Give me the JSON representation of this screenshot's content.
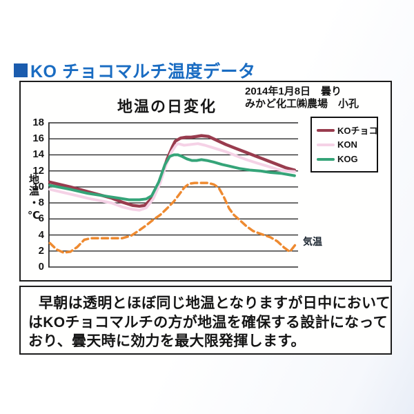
{
  "header": {
    "title": "KO チョコマルチ温度データ"
  },
  "chart": {
    "title": "地温の日変化",
    "date_line1": "2014年1月8日　曇り",
    "date_line2": "みかど化工㈱農場　小孔",
    "ylabel": "地温・℃",
    "air_temp_label": "気温",
    "legend": [
      {
        "label": "KOチョコ",
        "color": "#993c4e"
      },
      {
        "label": "KON",
        "color": "#f5d2e6"
      },
      {
        "label": "KOG",
        "color": "#35a478"
      }
    ]
  },
  "chart_data": {
    "type": "line",
    "title": "地温の日変化",
    "xlabel": "",
    "ylabel": "地温・℃",
    "ylim": [
      0,
      18
    ],
    "yticks": [
      0,
      2,
      4,
      6,
      8,
      10,
      12,
      14,
      16,
      18
    ],
    "grid": "horizontal",
    "legend_position": "outside-right",
    "x_unit": "time of day, percent of axis (no x tick labels shown)",
    "series": [
      {
        "name": "KOチョコ",
        "color": "#993c4e",
        "style": "solid",
        "width": 4.5,
        "points": [
          [
            0.6,
            10.6
          ],
          [
            8.8,
            10.0
          ],
          [
            17.1,
            9.3
          ],
          [
            25.4,
            8.6
          ],
          [
            29.6,
            8.1
          ],
          [
            33.7,
            7.7
          ],
          [
            36.5,
            7.6
          ],
          [
            38.7,
            7.7
          ],
          [
            40.6,
            8.3
          ],
          [
            43.4,
            9.8
          ],
          [
            45.6,
            11.6
          ],
          [
            47.5,
            13.4
          ],
          [
            49.7,
            15.0
          ],
          [
            50.8,
            15.7
          ],
          [
            53.0,
            16.1
          ],
          [
            55.2,
            16.2
          ],
          [
            57.2,
            16.2
          ],
          [
            59.4,
            16.3
          ],
          [
            61.3,
            16.4
          ],
          [
            64.1,
            16.3
          ],
          [
            66.9,
            15.9
          ],
          [
            71.0,
            15.3
          ],
          [
            75.1,
            14.8
          ],
          [
            79.3,
            14.3
          ],
          [
            83.4,
            13.8
          ],
          [
            87.6,
            13.3
          ],
          [
            91.7,
            12.8
          ],
          [
            95.0,
            12.4
          ],
          [
            98.6,
            12.1
          ]
        ]
      },
      {
        "name": "KON",
        "color": "#f5d2e6",
        "style": "solid",
        "width": 4,
        "points": [
          [
            0.6,
            9.7
          ],
          [
            8.8,
            9.1
          ],
          [
            17.1,
            8.5
          ],
          [
            25.4,
            8.0
          ],
          [
            29.6,
            7.5
          ],
          [
            33.7,
            7.2
          ],
          [
            36.5,
            7.1
          ],
          [
            39.2,
            7.4
          ],
          [
            42.0,
            8.5
          ],
          [
            44.8,
            10.5
          ],
          [
            47.0,
            12.6
          ],
          [
            49.2,
            14.3
          ],
          [
            51.1,
            15.2
          ],
          [
            51.9,
            15.4
          ],
          [
            54.4,
            15.2
          ],
          [
            57.2,
            15.3
          ],
          [
            59.9,
            15.4
          ],
          [
            62.7,
            15.2
          ],
          [
            66.9,
            14.8
          ],
          [
            71.0,
            14.4
          ],
          [
            75.1,
            13.9
          ],
          [
            79.3,
            13.4
          ],
          [
            83.4,
            13.0
          ],
          [
            87.6,
            12.6
          ],
          [
            91.7,
            12.2
          ],
          [
            95.0,
            12.0
          ],
          [
            98.6,
            11.9
          ]
        ]
      },
      {
        "name": "KOG",
        "color": "#35a478",
        "style": "solid",
        "width": 4,
        "points": [
          [
            0.6,
            10.2
          ],
          [
            8.8,
            9.7
          ],
          [
            15.7,
            9.2
          ],
          [
            19.9,
            9.0
          ],
          [
            24.0,
            8.8
          ],
          [
            28.2,
            8.6
          ],
          [
            32.3,
            8.4
          ],
          [
            36.5,
            8.4
          ],
          [
            39.2,
            8.5
          ],
          [
            41.4,
            8.9
          ],
          [
            44.2,
            10.6
          ],
          [
            46.7,
            12.8
          ],
          [
            48.6,
            13.8
          ],
          [
            50.3,
            14.0
          ],
          [
            51.9,
            14.0
          ],
          [
            53.6,
            13.8
          ],
          [
            55.5,
            13.5
          ],
          [
            57.5,
            13.3
          ],
          [
            59.4,
            13.3
          ],
          [
            61.3,
            13.4
          ],
          [
            63.5,
            13.3
          ],
          [
            66.3,
            13.1
          ],
          [
            69.6,
            12.8
          ],
          [
            72.4,
            12.6
          ],
          [
            76.5,
            12.3
          ],
          [
            80.7,
            12.1
          ],
          [
            84.8,
            12.0
          ],
          [
            89.0,
            11.8
          ],
          [
            93.1,
            11.7
          ],
          [
            98.6,
            11.4
          ]
        ]
      },
      {
        "name": "気温",
        "color": "#ee8a30",
        "style": "dashed",
        "width": 3.5,
        "points": [
          [
            0.6,
            3.0
          ],
          [
            3.3,
            2.2
          ],
          [
            6.1,
            1.8
          ],
          [
            8.8,
            1.9
          ],
          [
            11.6,
            2.5
          ],
          [
            14.4,
            3.4
          ],
          [
            17.1,
            3.6
          ],
          [
            21.3,
            3.6
          ],
          [
            25.4,
            3.6
          ],
          [
            29.6,
            3.6
          ],
          [
            33.1,
            3.9
          ],
          [
            36.5,
            4.6
          ],
          [
            39.2,
            5.2
          ],
          [
            42.0,
            5.9
          ],
          [
            44.8,
            6.5
          ],
          [
            47.5,
            7.3
          ],
          [
            50.3,
            8.2
          ],
          [
            52.5,
            9.1
          ],
          [
            54.4,
            9.9
          ],
          [
            56.4,
            10.4
          ],
          [
            58.6,
            10.5
          ],
          [
            61.3,
            10.5
          ],
          [
            64.1,
            10.5
          ],
          [
            66.3,
            10.3
          ],
          [
            68.2,
            9.9
          ],
          [
            70.2,
            8.8
          ],
          [
            72.4,
            7.3
          ],
          [
            74.3,
            6.5
          ],
          [
            76.5,
            5.9
          ],
          [
            79.3,
            5.1
          ],
          [
            82.0,
            4.5
          ],
          [
            85.4,
            4.1
          ],
          [
            89.0,
            3.7
          ],
          [
            91.7,
            3.2
          ],
          [
            94.5,
            2.4
          ],
          [
            96.7,
            1.9
          ],
          [
            99.2,
            2.9
          ]
        ]
      }
    ]
  },
  "note": {
    "lines": [
      "早朝は透明とほぼ同じ地温となりますが日中において",
      "はKOチョコマルチの方が地温を確保する設計になって",
      "おり、曇天時に効力を最大限発揮します。"
    ]
  },
  "colors": {
    "header_blue": "#1a6cc2",
    "header_square_blue": "#1b5cae",
    "grid_line": "#2a2a2a",
    "panel_border": "#1c1c1c"
  }
}
